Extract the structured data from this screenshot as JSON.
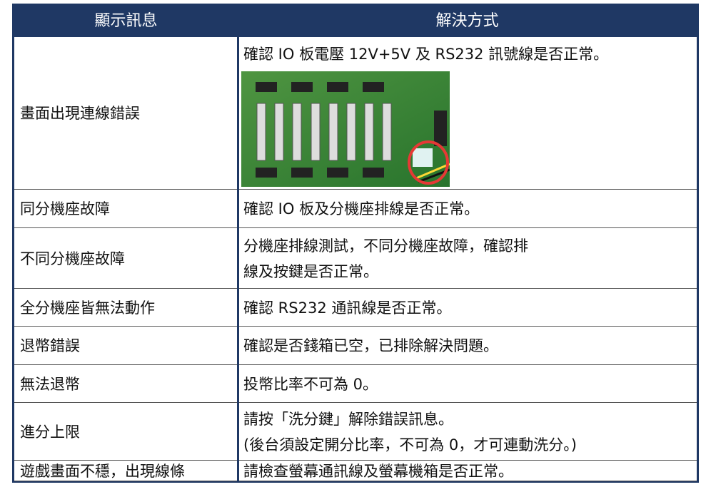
{
  "table": {
    "header": [
      "顯示訊息",
      "解決方式"
    ],
    "rows": [
      [
        "畫面出現連線錯誤",
        [
          "確認 IO 板電壓 12V+5V 及 RS232 訊號線是否正常。"
        ]
      ],
      [
        "同分機座故障",
        [
          "確認 IO 板及分機座排線是否正常。"
        ]
      ],
      [
        "不同分機座故障",
        [
          "分機座排線測試，不同分機座故障，確認排",
          "線及按鍵是否正常。"
        ]
      ],
      [
        "全分機座皆無法動作",
        [
          "確認 RS232 通訊線是否正常。"
        ]
      ],
      [
        "退幣錯誤",
        [
          "確認是否錢箱已空，已排除解決問題。"
        ]
      ],
      [
        "無法退幣",
        [
          "投幣比率不可為 0。"
        ]
      ],
      [
        "進分上限",
        [
          "請按「洗分鍵」解除錯誤訊息。",
          "(後台須設定開分比率，不可為 0，才可連動洗分。)"
        ]
      ],
      [
        "遊戲畫面不穩，出現線條",
        [
          "請檢查螢幕通訊線及螢幕機箱是否正常。"
        ]
      ]
    ]
  }
}
